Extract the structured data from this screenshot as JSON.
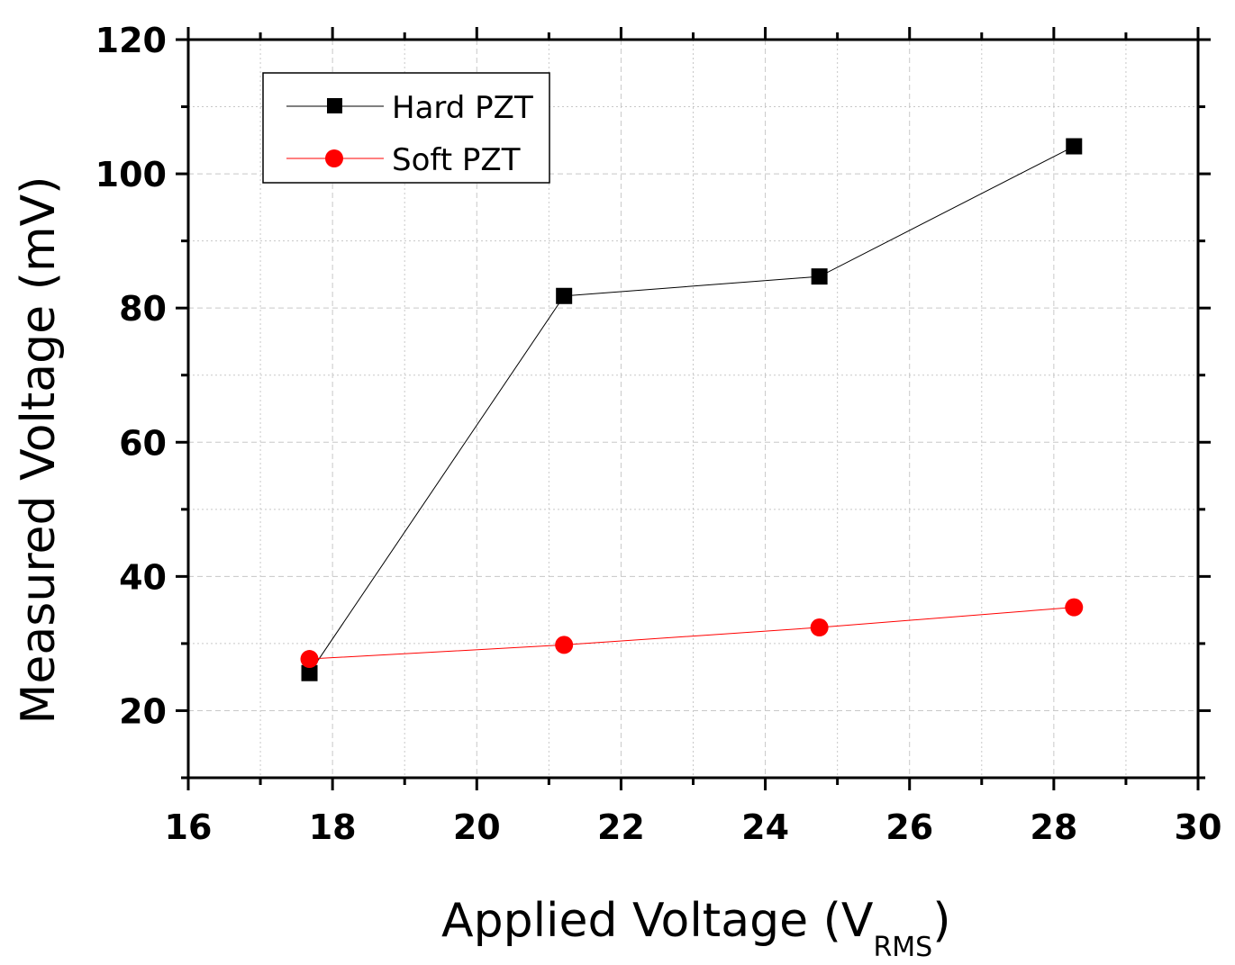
{
  "chart_data": {
    "type": "line",
    "title": "",
    "xlabel": "Applied Voltage (V",
    "xlabel_subscript": "RMS",
    "xlabel_suffix": ")",
    "ylabel": "Measured Voltage (mV)",
    "xlim": [
      16,
      30
    ],
    "ylim": [
      10,
      120
    ],
    "xticks": [
      16,
      18,
      20,
      22,
      24,
      26,
      28,
      30
    ],
    "yticks": [
      20,
      40,
      60,
      80,
      100,
      120
    ],
    "grid": true,
    "legend_position": "top-left",
    "series": [
      {
        "name": "Hard PZT",
        "color": "#000000",
        "marker": "square",
        "points": [
          {
            "x": 17.68,
            "y": 25.6
          },
          {
            "x": 21.21,
            "y": 81.8
          },
          {
            "x": 24.75,
            "y": 84.7
          },
          {
            "x": 28.28,
            "y": 104.1
          }
        ]
      },
      {
        "name": "Soft PZT",
        "color": "#ff0000",
        "marker": "circle",
        "points": [
          {
            "x": 17.68,
            "y": 27.7
          },
          {
            "x": 21.21,
            "y": 29.8
          },
          {
            "x": 24.75,
            "y": 32.4
          },
          {
            "x": 28.28,
            "y": 35.4
          }
        ]
      }
    ]
  }
}
